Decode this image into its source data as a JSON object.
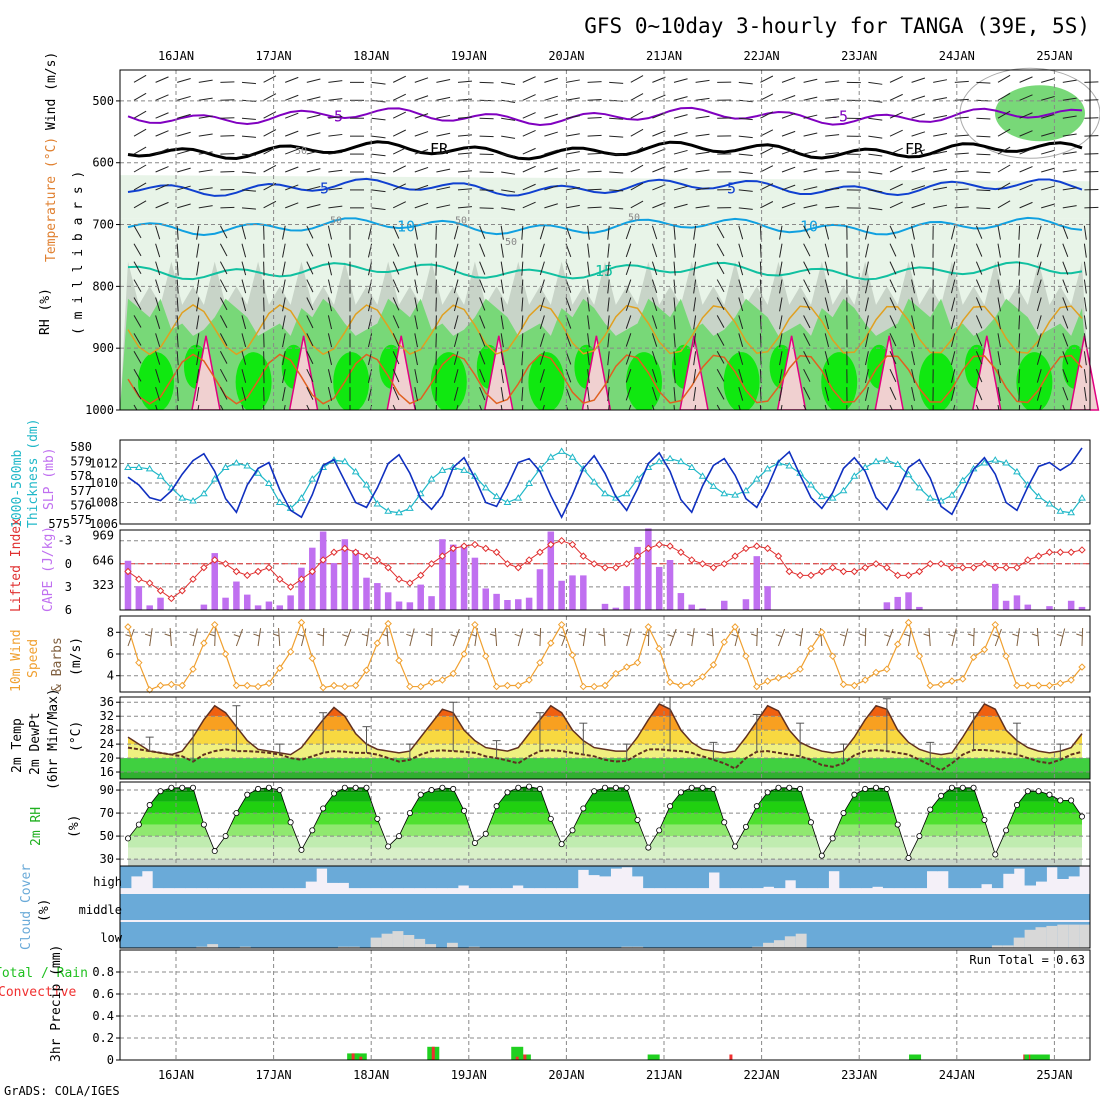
{
  "title": "GFS 0~10day 3-hourly for TANGA (39E, 5S)",
  "footer": "GrADS: COLA/IGES",
  "dates": [
    "16JAN",
    "17JAN",
    "18JAN",
    "19JAN",
    "20JAN",
    "21JAN",
    "22JAN",
    "23JAN",
    "24JAN",
    "25JAN"
  ],
  "colors": {
    "rh_light": "#e8f4e8",
    "rh_grey": "#c8d4c8",
    "rh_green": "#78d878",
    "rh_bright": "#10e810",
    "temp_m5": "#8000c0",
    "temp_fr": "#000000",
    "temp_5": "#1040d0",
    "temp_10": "#10a0e0",
    "temp_15": "#10c0a0",
    "temp_20": "#e0a020",
    "temp_25": "#e06020",
    "temp_30": "#e00080",
    "thickness": "#20b8c8",
    "slp": "#1030c0",
    "cape": "#c070f0",
    "lifted": "#e03030",
    "wind10": "#f0a030",
    "barb10": "#806040",
    "cloud_blue": "#6aaad8",
    "cloud_white": "#f4f0f8",
    "cloud_low": "#d8d8d8",
    "precip_total": "#20d020",
    "precip_conv": "#f03030"
  },
  "panels": [
    {
      "label_a": "RH (%)",
      "label_b": "Temperature (°C)",
      "label_c": "Wind (m/s)",
      "label_d": "( m i l l i b a r s )"
    },
    {
      "label_a": "1000-500mb",
      "label_b": "Thickness (dm)",
      "label_c": "SLP (mb)"
    },
    {
      "label_a": "Lifted Index",
      "label_b": "CAPE (J/kg)"
    },
    {
      "label_a": "10m Wind",
      "label_b": "Speed",
      "label_c": "& Barbs",
      "label_d": "(m/s)"
    },
    {
      "label_a": "2m Temp",
      "label_b": "2m DewPt",
      "label_c": "(6hr Min/Max)",
      "label_d": "(°C)"
    },
    {
      "label_a": "2m RH",
      "label_b": "(%)"
    },
    {
      "label_a": "Cloud Cover",
      "label_b": "(%)"
    },
    {
      "label_a": "Total / Rain",
      "label_b": "Convective",
      "label_c": "3hr Precip (mm)"
    }
  ],
  "cloud_labels": {
    "high": "high",
    "middle": "middle",
    "low": "low"
  },
  "run_total": "Run Total = 0.63",
  "chart_data": [
    {
      "type": "heatmap",
      "name": "RH / Temperature / Wind cross-section",
      "y_ticks": [
        500,
        600,
        700,
        800,
        900,
        1000
      ],
      "ylim": [
        1000,
        450
      ],
      "contour_labels": [
        "-5",
        "-5",
        "FR",
        "FR",
        "5",
        "5",
        "10",
        "10",
        "15",
        "50",
        "50",
        "50",
        "50",
        "50"
      ],
      "isotherms": [
        {
          "label": "-5",
          "level": 525
        },
        {
          "label": "FR",
          "level": 580
        },
        {
          "label": "5",
          "level": 640
        },
        {
          "label": "10",
          "level": 703
        },
        {
          "label": "15",
          "level": 775
        }
      ]
    },
    {
      "type": "line",
      "name": "Thickness / SLP",
      "thickness_ticks": [
        575,
        576,
        577,
        578,
        579,
        580
      ],
      "slp_ticks": [
        1008,
        1010,
        1012
      ],
      "slp_extra_tick": "1006",
      "thickness_extra_tick": "575",
      "thickness_range": [
        575,
        580
      ],
      "slp_range": [
        1005.8,
        1014
      ],
      "thickness": [
        578.6,
        578.6,
        578.5,
        578.0,
        577.2,
        576.5,
        576.3,
        576.8,
        577.8,
        578.6,
        578.9,
        578.7,
        578.2,
        577.5,
        576.2,
        575.8,
        576.5,
        577.8,
        578.6,
        579.1,
        579.0,
        578.3,
        577.4,
        576.1,
        575.6,
        575.5,
        575.8,
        576.8,
        577.8,
        578.4,
        578.6,
        578.4,
        578.0,
        577.2,
        576.6,
        576.2,
        576.5,
        577.5,
        578.5,
        579.3,
        579.7,
        579.3,
        578.5,
        577.6,
        576.8,
        576.5,
        576.8,
        577.8,
        578.6,
        579.0,
        579.2,
        579.0,
        578.6,
        578.0,
        577.3,
        576.8,
        576.7,
        577.0,
        577.8,
        578.5,
        578.9,
        578.7,
        578.2,
        577.4,
        576.6,
        576.5,
        577.0,
        578.0,
        578.6,
        579.0,
        579.1,
        578.8,
        578.1,
        577.2,
        576.5,
        576.3,
        576.7,
        577.7,
        578.5,
        578.9,
        579.1,
        578.9,
        578.3,
        577.4,
        576.6,
        576.1,
        575.6,
        575.5,
        576.5
      ],
      "slp": [
        1010.6,
        1009.8,
        1008.5,
        1008.2,
        1009.2,
        1010.9,
        1012.3,
        1013.0,
        1011.2,
        1008.4,
        1007.0,
        1009.8,
        1011.5,
        1012.1,
        1009.3,
        1007.2,
        1006.5,
        1008.8,
        1011.8,
        1012.4,
        1010.2,
        1008.0,
        1007.5,
        1009.5,
        1012.0,
        1012.9,
        1011.0,
        1008.4,
        1007.3,
        1008.7,
        1011.6,
        1012.6,
        1010.5,
        1008.0,
        1007.6,
        1009.7,
        1012.1,
        1012.5,
        1011.2,
        1008.7,
        1006.5,
        1008.8,
        1011.5,
        1012.8,
        1011.0,
        1008.6,
        1007.2,
        1009.4,
        1012.0,
        1013.1,
        1011.2,
        1008.3,
        1007.0,
        1009.7,
        1011.8,
        1012.5,
        1010.8,
        1008.4,
        1007.5,
        1009.6,
        1012.2,
        1013.2,
        1010.8,
        1008.5,
        1007.4,
        1009.0,
        1011.5,
        1012.6,
        1011.2,
        1008.5,
        1007.3,
        1009.2,
        1011.6,
        1012.4,
        1010.5,
        1007.6,
        1006.8,
        1009.0,
        1011.4,
        1012.6,
        1010.9,
        1008.0,
        1007.2,
        1009.6,
        1011.7,
        1012.1,
        1011.3,
        1012.0,
        1013.6
      ]
    },
    {
      "type": "bar",
      "name": "Lifted Index / CAPE",
      "li_ticks": [
        "-3",
        "0",
        "3",
        "6"
      ],
      "cape_ticks": [
        323,
        646,
        969
      ],
      "li_range": [
        6,
        -4
      ],
      "cape_range": [
        0,
        1300
      ],
      "cape": [
        640,
        310,
        60,
        160,
        0,
        0,
        0,
        70,
        740,
        160,
        370,
        200,
        60,
        110,
        60,
        190,
        550,
        810,
        1020,
        610,
        920,
        780,
        420,
        350,
        230,
        110,
        100,
        330,
        180,
        920,
        850,
        850,
        680,
        280,
        210,
        130,
        140,
        160,
        530,
        1020,
        380,
        450,
        450,
        0,
        80,
        30,
        310,
        820,
        1060,
        560,
        650,
        220,
        70,
        20,
        0,
        120,
        0,
        140,
        700,
        310,
        0,
        0,
        0,
        0,
        0,
        0,
        0,
        0,
        0,
        0,
        100,
        170,
        230,
        40,
        0,
        0,
        0,
        0,
        0,
        0,
        340,
        120,
        190,
        70,
        0,
        50,
        0,
        120,
        40
      ],
      "lifted_index": [
        1.0,
        2.0,
        2.5,
        3.5,
        4.5,
        3.5,
        2.0,
        0.5,
        -0.5,
        0.0,
        1.0,
        1.5,
        1.0,
        0.5,
        2.0,
        3.0,
        2.0,
        1.0,
        -0.5,
        -1.5,
        -2.0,
        -1.5,
        -1.0,
        -0.5,
        0.5,
        2.0,
        2.5,
        1.5,
        0.0,
        -1.0,
        -2.0,
        -2.3,
        -2.5,
        -2.0,
        -1.5,
        0.0,
        0.5,
        -0.5,
        -1.5,
        -2.5,
        -3.0,
        -2.5,
        -1.0,
        0.0,
        0.5,
        0.5,
        0.0,
        -1.0,
        -2.0,
        -2.5,
        -2.3,
        -1.5,
        -0.5,
        0.0,
        0.5,
        0.0,
        -1.0,
        -2.0,
        -2.3,
        -2.0,
        -1.0,
        1.0,
        1.5,
        1.5,
        1.0,
        0.5,
        1.0,
        1.0,
        0.5,
        0.0,
        0.5,
        1.5,
        1.5,
        1.0,
        0.0,
        0.0,
        0.5,
        0.5,
        0.5,
        0.0,
        0.5,
        0.5,
        0.5,
        -0.5,
        -1.0,
        -1.5,
        -1.5,
        -1.5,
        -1.8
      ]
    },
    {
      "type": "line",
      "name": "10m Wind Speed",
      "ticks": [
        4,
        6,
        8
      ],
      "ylim": [
        2.5,
        9.5
      ],
      "values": [
        8.5,
        5.2,
        2.7,
        3.1,
        3.2,
        3.1,
        4.6,
        7.0,
        8.7,
        6.0,
        3.1,
        3.1,
        3.0,
        3.3,
        4.7,
        6.2,
        8.9,
        5.6,
        2.9,
        3.1,
        3.0,
        3.1,
        4.5,
        7.0,
        8.8,
        5.4,
        3.0,
        3.0,
        3.4,
        3.6,
        4.2,
        6.0,
        8.7,
        5.8,
        3.0,
        3.1,
        3.1,
        3.6,
        5.2,
        7.0,
        8.7,
        5.9,
        3.0,
        3.0,
        3.1,
        4.2,
        4.8,
        5.2,
        8.5,
        6.5,
        3.4,
        3.1,
        3.3,
        3.9,
        5.0,
        7.1,
        8.5,
        5.8,
        3.0,
        3.5,
        3.8,
        4.0,
        4.6,
        6.5,
        8.0,
        5.8,
        3.2,
        3.1,
        3.6,
        4.3,
        4.6,
        6.9,
        8.9,
        5.8,
        3.1,
        3.2,
        3.5,
        3.7,
        5.7,
        6.4,
        8.7,
        5.8,
        3.1,
        3.1,
        3.1,
        3.1,
        3.3,
        3.6,
        4.8
      ]
    },
    {
      "type": "area",
      "name": "2m Temp / DewPt",
      "ticks": [
        16,
        20,
        24,
        28,
        32,
        36
      ],
      "ylim": [
        14,
        37.5
      ],
      "temp": [
        26,
        24,
        22,
        21.5,
        21,
        22,
        26,
        31,
        35,
        33,
        29,
        25,
        22.5,
        22,
        21.5,
        21,
        23,
        27,
        31,
        34.5,
        32,
        27,
        24,
        22.5,
        22,
        21.5,
        22,
        26,
        30,
        34,
        33,
        28,
        25,
        23,
        22.5,
        22,
        23,
        27,
        31,
        35,
        33,
        28,
        25,
        23,
        22.5,
        22,
        22,
        26,
        31,
        35.5,
        34,
        28,
        24.5,
        22.5,
        22,
        21.5,
        22,
        26,
        30.5,
        35,
        33.5,
        28,
        24.5,
        23,
        22,
        21.5,
        22,
        26,
        31,
        35,
        34,
        28,
        24.5,
        22.5,
        21.5,
        21,
        21.5,
        26,
        31,
        35.5,
        34,
        28,
        25,
        23,
        22,
        21.5,
        22,
        23,
        27
      ],
      "dewpt": [
        23,
        22.5,
        22,
        21.5,
        21,
        20.5,
        19,
        21,
        22,
        22.5,
        22,
        22,
        21.8,
        21.5,
        21,
        20,
        19.5,
        20.5,
        21.5,
        22,
        21.8,
        21.5,
        21.5,
        21,
        20,
        19,
        19.5,
        21,
        22,
        22.2,
        22,
        21.8,
        21.5,
        20.5,
        20,
        19.3,
        18.5,
        20.5,
        22,
        22.3,
        22,
        21.5,
        21,
        20.5,
        19.5,
        19,
        19.2,
        21,
        22.5,
        22.5,
        22.2,
        22,
        21.5,
        20.5,
        19.5,
        18.5,
        17,
        20,
        21.8,
        22,
        21.5,
        21,
        20.5,
        19.5,
        18,
        17.5,
        18.5,
        20.8,
        22,
        22.3,
        22,
        21.5,
        21,
        19.5,
        18,
        16.5,
        18.5,
        21,
        22.3,
        22.3,
        22,
        21.5,
        21,
        20,
        19,
        18.5,
        19.5,
        21,
        21.8
      ]
    },
    {
      "type": "area",
      "name": "2m RH",
      "ticks": [
        30,
        50,
        70,
        90
      ],
      "ylim": [
        24,
        97
      ],
      "values": [
        48,
        60,
        77,
        89,
        92,
        92,
        92,
        60,
        37,
        50,
        70,
        86,
        91,
        92,
        90,
        62,
        38,
        55,
        74,
        87,
        92,
        92,
        92,
        65,
        41,
        50,
        70,
        86,
        90,
        92,
        91,
        72,
        44,
        52,
        76,
        88,
        92,
        93,
        91,
        65,
        43,
        55,
        74,
        89,
        92,
        92,
        92,
        64,
        40,
        55,
        76,
        88,
        92,
        92,
        91,
        62,
        41,
        58,
        76,
        88,
        92,
        92,
        91,
        62,
        33,
        48,
        70,
        86,
        91,
        92,
        91,
        60,
        31,
        50,
        73,
        85,
        92,
        92,
        92,
        64,
        34,
        55,
        77,
        89,
        89,
        86,
        81,
        81,
        67
      ]
    },
    {
      "type": "bar",
      "name": "Cloud Cover",
      "rows": [
        "high",
        "middle",
        "low"
      ],
      "high": [
        85,
        40,
        20,
        85,
        85,
        85,
        85,
        85,
        85,
        85,
        85,
        85,
        85,
        85,
        85,
        85,
        85,
        60,
        10,
        65,
        65,
        85,
        85,
        85,
        85,
        85,
        85,
        85,
        85,
        85,
        85,
        75,
        85,
        85,
        85,
        85,
        75,
        85,
        85,
        85,
        85,
        85,
        15,
        35,
        40,
        10,
        5,
        40,
        85,
        85,
        85,
        85,
        85,
        85,
        25,
        85,
        85,
        85,
        85,
        80,
        85,
        55,
        85,
        85,
        85,
        20,
        85,
        85,
        85,
        80,
        85,
        85,
        85,
        85,
        20,
        20,
        85,
        85,
        85,
        70,
        85,
        30,
        10,
        75,
        60,
        5,
        50,
        40
      ],
      "middle": [
        100,
        100,
        100,
        100,
        100,
        100,
        100,
        100,
        100,
        100,
        100,
        100,
        100,
        100,
        100,
        100,
        100,
        100,
        100,
        100,
        100,
        100,
        100,
        100,
        100,
        100,
        100,
        100,
        100,
        100,
        100,
        100,
        100,
        100,
        100,
        100,
        100,
        100,
        100,
        100,
        100,
        100,
        100,
        100,
        100,
        100,
        100,
        100,
        100,
        100,
        100,
        100,
        100,
        100,
        100,
        100,
        100,
        100,
        100,
        100,
        100,
        100,
        100,
        100,
        100,
        100,
        100,
        100,
        100,
        100,
        100,
        100,
        100,
        100,
        100,
        100,
        100,
        100,
        100,
        100,
        100,
        100,
        100,
        100,
        100,
        100,
        100,
        100,
        100
      ],
      "low": [
        0,
        0,
        0,
        0,
        0,
        0,
        0,
        5,
        15,
        0,
        0,
        5,
        0,
        0,
        0,
        0,
        0,
        0,
        0,
        0,
        5,
        5,
        0,
        40,
        55,
        65,
        50,
        35,
        15,
        0,
        20,
        0,
        5,
        0,
        0,
        0,
        0,
        0,
        0,
        0,
        0,
        0,
        0,
        0,
        0,
        0,
        5,
        5,
        0,
        0,
        0,
        0,
        0,
        0,
        0,
        0,
        0,
        0,
        5,
        20,
        30,
        45,
        55,
        0,
        0,
        0,
        0,
        0,
        0,
        0,
        0,
        0,
        0,
        0,
        0,
        0,
        0,
        0,
        0,
        0,
        10,
        10,
        40,
        70,
        80,
        85,
        90,
        90,
        90
      ]
    },
    {
      "type": "bar",
      "name": "3hr Precip",
      "ticks": [
        "0",
        "0.2",
        "0.4",
        "0.6",
        "0.8"
      ],
      "ylim": [
        0,
        1.0
      ],
      "bars": [
        {
          "x": 23.6,
          "total": 0.06,
          "conv": 0.06
        },
        {
          "x": 24.4,
          "total": 0.06,
          "conv": 0.03
        },
        {
          "x": 32.0,
          "total": 0.12,
          "conv": 0.12
        },
        {
          "x": 40.8,
          "total": 0.12,
          "conv": 0.03
        },
        {
          "x": 41.6,
          "total": 0.05,
          "conv": 0.05
        },
        {
          "x": 55.1,
          "total": 0.05,
          "conv": 0.0
        },
        {
          "x": 63.2,
          "total": 0.0,
          "conv": 0.05
        },
        {
          "x": 82.5,
          "total": 0.05,
          "conv": 0.0
        },
        {
          "x": 94.0,
          "total": 0.0,
          "conv": 0.05
        },
        {
          "x": 94.6,
          "total": 0.05,
          "conv": 0.05
        },
        {
          "x": 95.2,
          "total": 0.05,
          "conv": 0.0
        },
        {
          "x": 96.0,
          "total": 0.05,
          "conv": 0.0
        }
      ]
    }
  ]
}
